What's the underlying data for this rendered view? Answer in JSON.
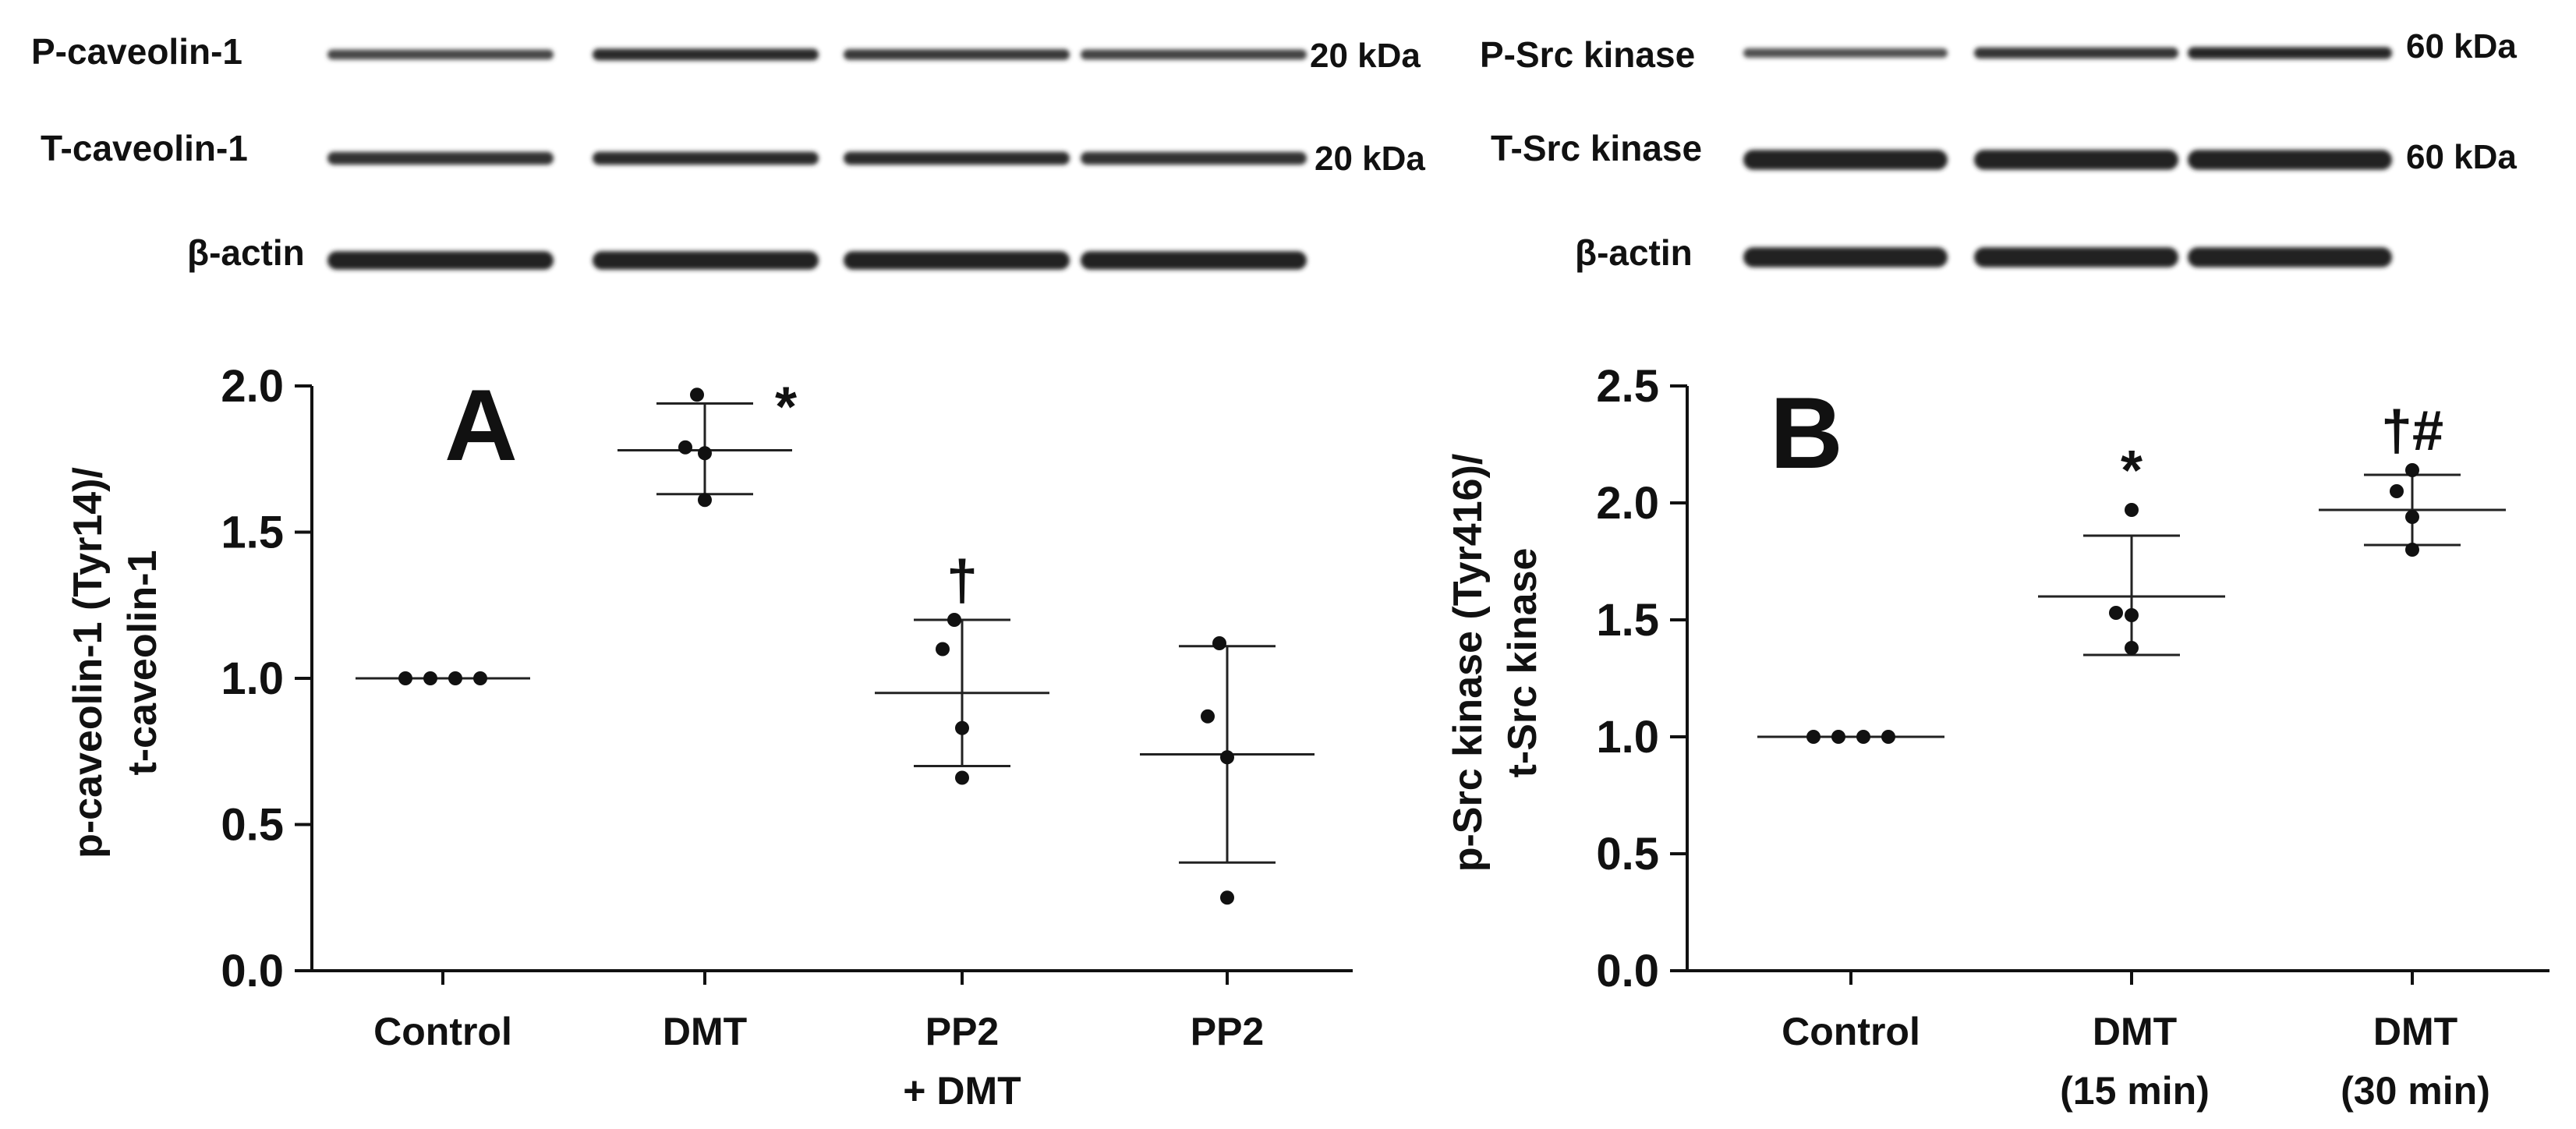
{
  "blots": {
    "left": {
      "rows": [
        {
          "label": "P-caveolin-1",
          "kda": "20 kDa",
          "strength": [
            0.55,
            0.85,
            0.7,
            0.6
          ]
        },
        {
          "label": "T-caveolin-1",
          "kda": "20 kDa",
          "strength": [
            0.8,
            0.85,
            0.85,
            0.8
          ]
        },
        {
          "label": "β-actin",
          "kda": "",
          "strength": [
            0.95,
            0.95,
            0.95,
            0.95
          ]
        }
      ]
    },
    "right": {
      "rows": [
        {
          "label": "P-Src kinase",
          "kda": "60 kDa",
          "strength": [
            0.45,
            0.75,
            0.9
          ]
        },
        {
          "label": "T-Src kinase",
          "kda": "60 kDa",
          "strength": [
            0.95,
            0.95,
            0.95
          ]
        },
        {
          "label": "β-actin",
          "kda": "",
          "strength": [
            0.95,
            0.95,
            0.95
          ]
        }
      ]
    }
  },
  "chart_data": [
    {
      "type": "scatter",
      "panel_letter": "A",
      "ylabel_line1": "p-caveolin-1 (Tyr14)/",
      "ylabel_line2": "t-caveolin-1",
      "ylim": [
        0,
        2.0
      ],
      "yticks": [
        "0.0",
        "0.5",
        "1.0",
        "1.5",
        "2.0"
      ],
      "categories": [
        {
          "lines": [
            "Control"
          ],
          "points": [
            1.0,
            1.0,
            1.0,
            1.0
          ],
          "mean": 1.0,
          "sd_low": 1.0,
          "sd_high": 1.0,
          "mark": ""
        },
        {
          "lines": [
            "DMT"
          ],
          "points": [
            1.97,
            1.79,
            1.77,
            1.61
          ],
          "mean": 1.78,
          "sd_low": 1.63,
          "sd_high": 1.94,
          "mark": "*"
        },
        {
          "lines": [
            "PP2",
            "+ DMT"
          ],
          "points": [
            1.2,
            1.1,
            0.83,
            0.66
          ],
          "mean": 0.95,
          "sd_low": 0.7,
          "sd_high": 1.2,
          "mark": "†"
        },
        {
          "lines": [
            "PP2"
          ],
          "points": [
            1.12,
            0.87,
            0.73,
            0.25
          ],
          "mean": 0.74,
          "sd_low": 0.37,
          "sd_high": 1.11,
          "mark": ""
        }
      ]
    },
    {
      "type": "scatter",
      "panel_letter": "B",
      "ylabel_line1": "p-Src kinase (Tyr416)/",
      "ylabel_line2": "t-Src kinase",
      "ylim": [
        0,
        2.5
      ],
      "yticks": [
        "0.0",
        "0.5",
        "1.0",
        "1.5",
        "2.0",
        "2.5"
      ],
      "categories": [
        {
          "lines": [
            "Control"
          ],
          "points": [
            1.0,
            1.0,
            1.0,
            1.0
          ],
          "mean": 1.0,
          "sd_low": 1.0,
          "sd_high": 1.0,
          "mark": ""
        },
        {
          "lines": [
            "DMT",
            "(15 min)"
          ],
          "points": [
            1.97,
            1.53,
            1.52,
            1.38
          ],
          "mean": 1.6,
          "sd_low": 1.35,
          "sd_high": 1.86,
          "mark": "*"
        },
        {
          "lines": [
            "DMT",
            "(30 min)"
          ],
          "points": [
            2.14,
            2.05,
            1.94,
            1.8
          ],
          "mean": 1.97,
          "sd_low": 1.82,
          "sd_high": 2.12,
          "mark": "†#"
        }
      ]
    }
  ]
}
